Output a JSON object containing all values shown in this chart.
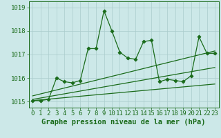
{
  "x_ticks": [
    0,
    1,
    2,
    3,
    4,
    5,
    6,
    7,
    8,
    9,
    10,
    11,
    12,
    13,
    14,
    15,
    16,
    17,
    18,
    19,
    20,
    21,
    22,
    23
  ],
  "main_line": {
    "x": [
      0,
      1,
      2,
      3,
      4,
      5,
      6,
      7,
      8,
      9,
      10,
      11,
      12,
      13,
      14,
      15,
      16,
      17,
      18,
      19,
      20,
      21,
      22,
      23
    ],
    "y": [
      1015.05,
      1015.05,
      1015.1,
      1016.0,
      1015.85,
      1015.8,
      1015.9,
      1017.25,
      1017.25,
      1018.85,
      1018.0,
      1017.1,
      1016.85,
      1016.8,
      1017.55,
      1017.6,
      1015.85,
      1015.95,
      1015.9,
      1015.85,
      1016.1,
      1017.75,
      1017.05,
      1017.05
    ]
  },
  "band_upper": {
    "x": [
      0,
      23
    ],
    "y": [
      1015.25,
      1017.15
    ]
  },
  "band_middle": {
    "x": [
      0,
      23
    ],
    "y": [
      1015.1,
      1016.45
    ]
  },
  "band_lower": {
    "x": [
      0,
      23
    ],
    "y": [
      1015.05,
      1015.75
    ]
  },
  "ylim": [
    1014.75,
    1019.25
  ],
  "yticks": [
    1015,
    1016,
    1017,
    1018,
    1019
  ],
  "color": "#1a6b1a",
  "bg_color": "#cce8e8",
  "grid_color": "#aacccc",
  "xlabel": "Graphe pression niveau de la mer (hPa)",
  "label_fontsize": 7.5,
  "tick_fontsize": 6.5
}
